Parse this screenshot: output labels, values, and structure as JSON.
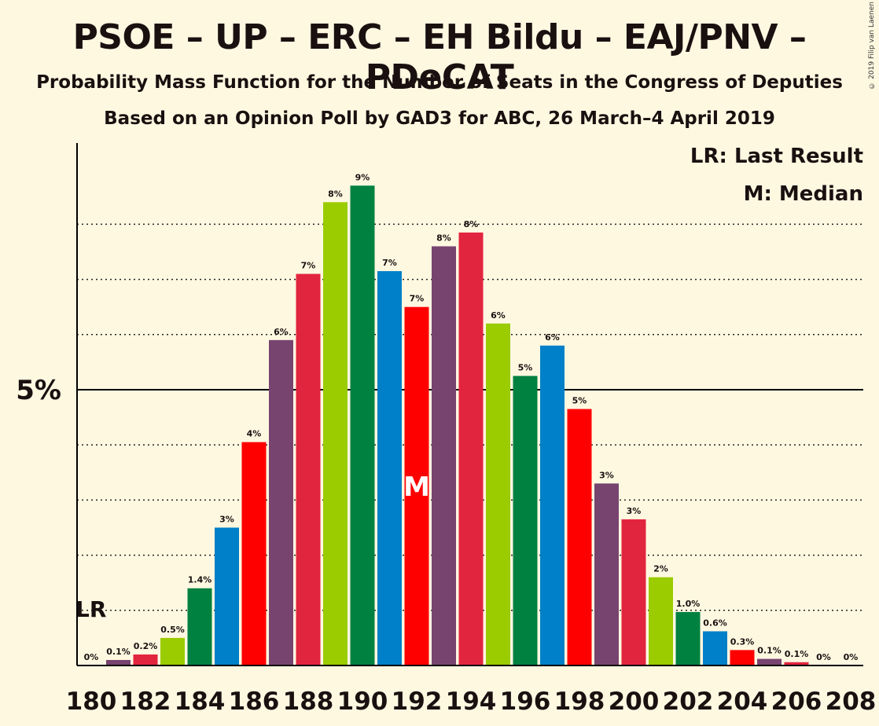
{
  "title": "PSOE – UP – ERC – EH Bildu – EAJ/PNV – PDeCAT",
  "subtitle1": "Probability Mass Function for the Number of Seats in the Congress of Deputies",
  "subtitle2": "Based on an Opinion Poll by GAD3 for ABC, 26 March–4 April 2019",
  "copyright": "© 2019 Filip van Laenen",
  "legend": {
    "last_result": "LR: Last Result",
    "median": "M: Median"
  },
  "markers": {
    "last_result_label": "LR",
    "median_label": "M"
  },
  "colors": {
    "background": "#fff8e1",
    "bar_palette": [
      "#e2253f",
      "#9acc00",
      "#008140",
      "#0080c8",
      "#ff0000",
      "#774470"
    ]
  },
  "chart_data": {
    "type": "bar",
    "x": [
      180,
      181,
      182,
      183,
      184,
      185,
      186,
      187,
      188,
      189,
      190,
      191,
      192,
      193,
      194,
      195,
      196,
      197,
      198,
      199,
      200,
      201,
      202,
      203,
      204,
      205,
      206,
      207,
      208
    ],
    "values": [
      0,
      0.1,
      0.2,
      0.5,
      1.4,
      2.5,
      4.05,
      5.9,
      7.1,
      8.4,
      8.7,
      7.15,
      6.5,
      7.6,
      7.85,
      6.2,
      5.25,
      5.8,
      4.65,
      3.3,
      2.65,
      1.6,
      0.97,
      0.62,
      0.28,
      0.12,
      0.06,
      0,
      0
    ],
    "data_labels": [
      "0%",
      "0.1%",
      "0.2%",
      "0.5%",
      "1.4%",
      "3%",
      "4%",
      "6%",
      "7%",
      "8%",
      "9%",
      "7%",
      "7%",
      "8%",
      "8%",
      "6%",
      "5%",
      "6%",
      "5%",
      "3%",
      "3%",
      "2%",
      "1.0%",
      "0.6%",
      "0.3%",
      "0.1%",
      "0.1%",
      "0%",
      "0%"
    ],
    "bar_colors": [
      "#0080c8",
      "#774470",
      "#e2253f",
      "#9acc00",
      "#008140",
      "#0080c8",
      "#ff0000",
      "#774470",
      "#e2253f",
      "#9acc00",
      "#008140",
      "#0080c8",
      "#ff0000",
      "#774470",
      "#e2253f",
      "#9acc00",
      "#008140",
      "#0080c8",
      "#ff0000",
      "#774470",
      "#e2253f",
      "#9acc00",
      "#008140",
      "#0080c8",
      "#ff0000",
      "#774470",
      "#e2253f",
      "#9acc00",
      "#008140"
    ],
    "x_tick_labels": [
      "180",
      "182",
      "184",
      "186",
      "188",
      "190",
      "192",
      "194",
      "196",
      "198",
      "200",
      "202",
      "204",
      "206",
      "208"
    ],
    "y_tick_labels": [
      "5%"
    ],
    "ylim": [
      0,
      9.5
    ],
    "gridlines_dotted": [
      1,
      2,
      3,
      4,
      6,
      7,
      8
    ],
    "gridline_solid": 5,
    "last_result_seat": 180,
    "last_result_value": 1,
    "median_seat": 192
  }
}
